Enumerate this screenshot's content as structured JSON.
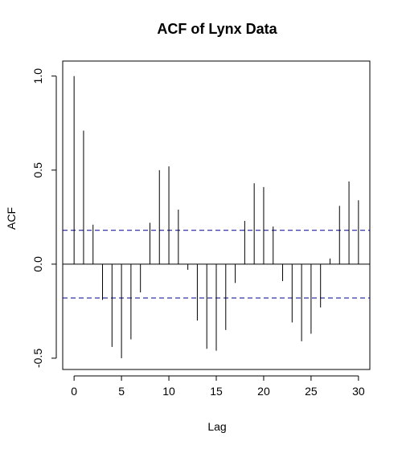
{
  "chart_data": {
    "type": "bar",
    "title": "ACF of Lynx Data",
    "xlabel": "Lag",
    "ylabel": "ACF",
    "xlim": [
      -1.2,
      31.2
    ],
    "ylim": [
      -0.56,
      1.08
    ],
    "x_ticks": [
      0,
      5,
      10,
      15,
      20,
      25,
      30
    ],
    "x_tick_labels": [
      "0",
      "5",
      "10",
      "15",
      "20",
      "25",
      "30"
    ],
    "y_ticks": [
      -0.5,
      0.0,
      0.5,
      1.0
    ],
    "y_tick_labels": [
      "-0.5",
      "0.0",
      "0.5",
      "1.0"
    ],
    "grid": false,
    "zero_line": 0,
    "confidence_bounds": [
      0.18,
      -0.18
    ],
    "colors": {
      "bars": "#000000",
      "confidence_lines": "#00008B",
      "axes": "#000000"
    },
    "lags": [
      0,
      1,
      2,
      3,
      4,
      5,
      6,
      7,
      8,
      9,
      10,
      11,
      12,
      13,
      14,
      15,
      16,
      17,
      18,
      19,
      20,
      21,
      22,
      23,
      24,
      25,
      26,
      27,
      28,
      29,
      30
    ],
    "values": [
      1.0,
      0.71,
      0.21,
      -0.19,
      -0.44,
      -0.5,
      -0.4,
      -0.15,
      0.22,
      0.5,
      0.52,
      0.29,
      -0.03,
      -0.3,
      -0.45,
      -0.46,
      -0.35,
      -0.1,
      0.23,
      0.43,
      0.41,
      0.2,
      -0.09,
      -0.31,
      -0.41,
      -0.37,
      -0.23,
      0.03,
      0.31,
      0.44,
      0.34
    ]
  }
}
